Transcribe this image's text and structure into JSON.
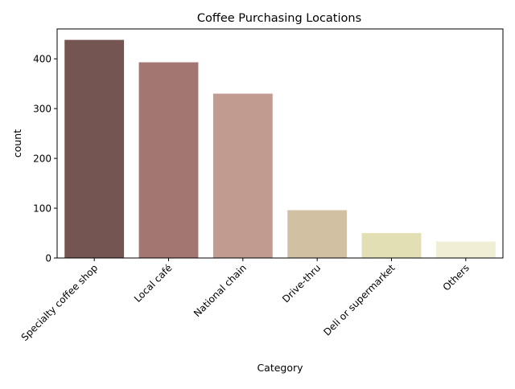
{
  "chart_data": {
    "type": "bar",
    "title": "Coffee Purchasing Locations",
    "xlabel": "Category",
    "ylabel": "count",
    "categories": [
      "Specialty coffee shop",
      "Local café",
      "National chain",
      "Drive-thru",
      "Deli or supermarket",
      "Others"
    ],
    "values": [
      438,
      393,
      330,
      96,
      50,
      33
    ],
    "colors": [
      "#745551",
      "#a47672",
      "#c19a90",
      "#d2c0a3",
      "#e3dfb4",
      "#f0eed4"
    ],
    "ylim": [
      0,
      460
    ],
    "yticks": [
      0,
      100,
      200,
      300,
      400
    ],
    "grid": false,
    "legend": "none",
    "xtick_rotation": 45
  }
}
